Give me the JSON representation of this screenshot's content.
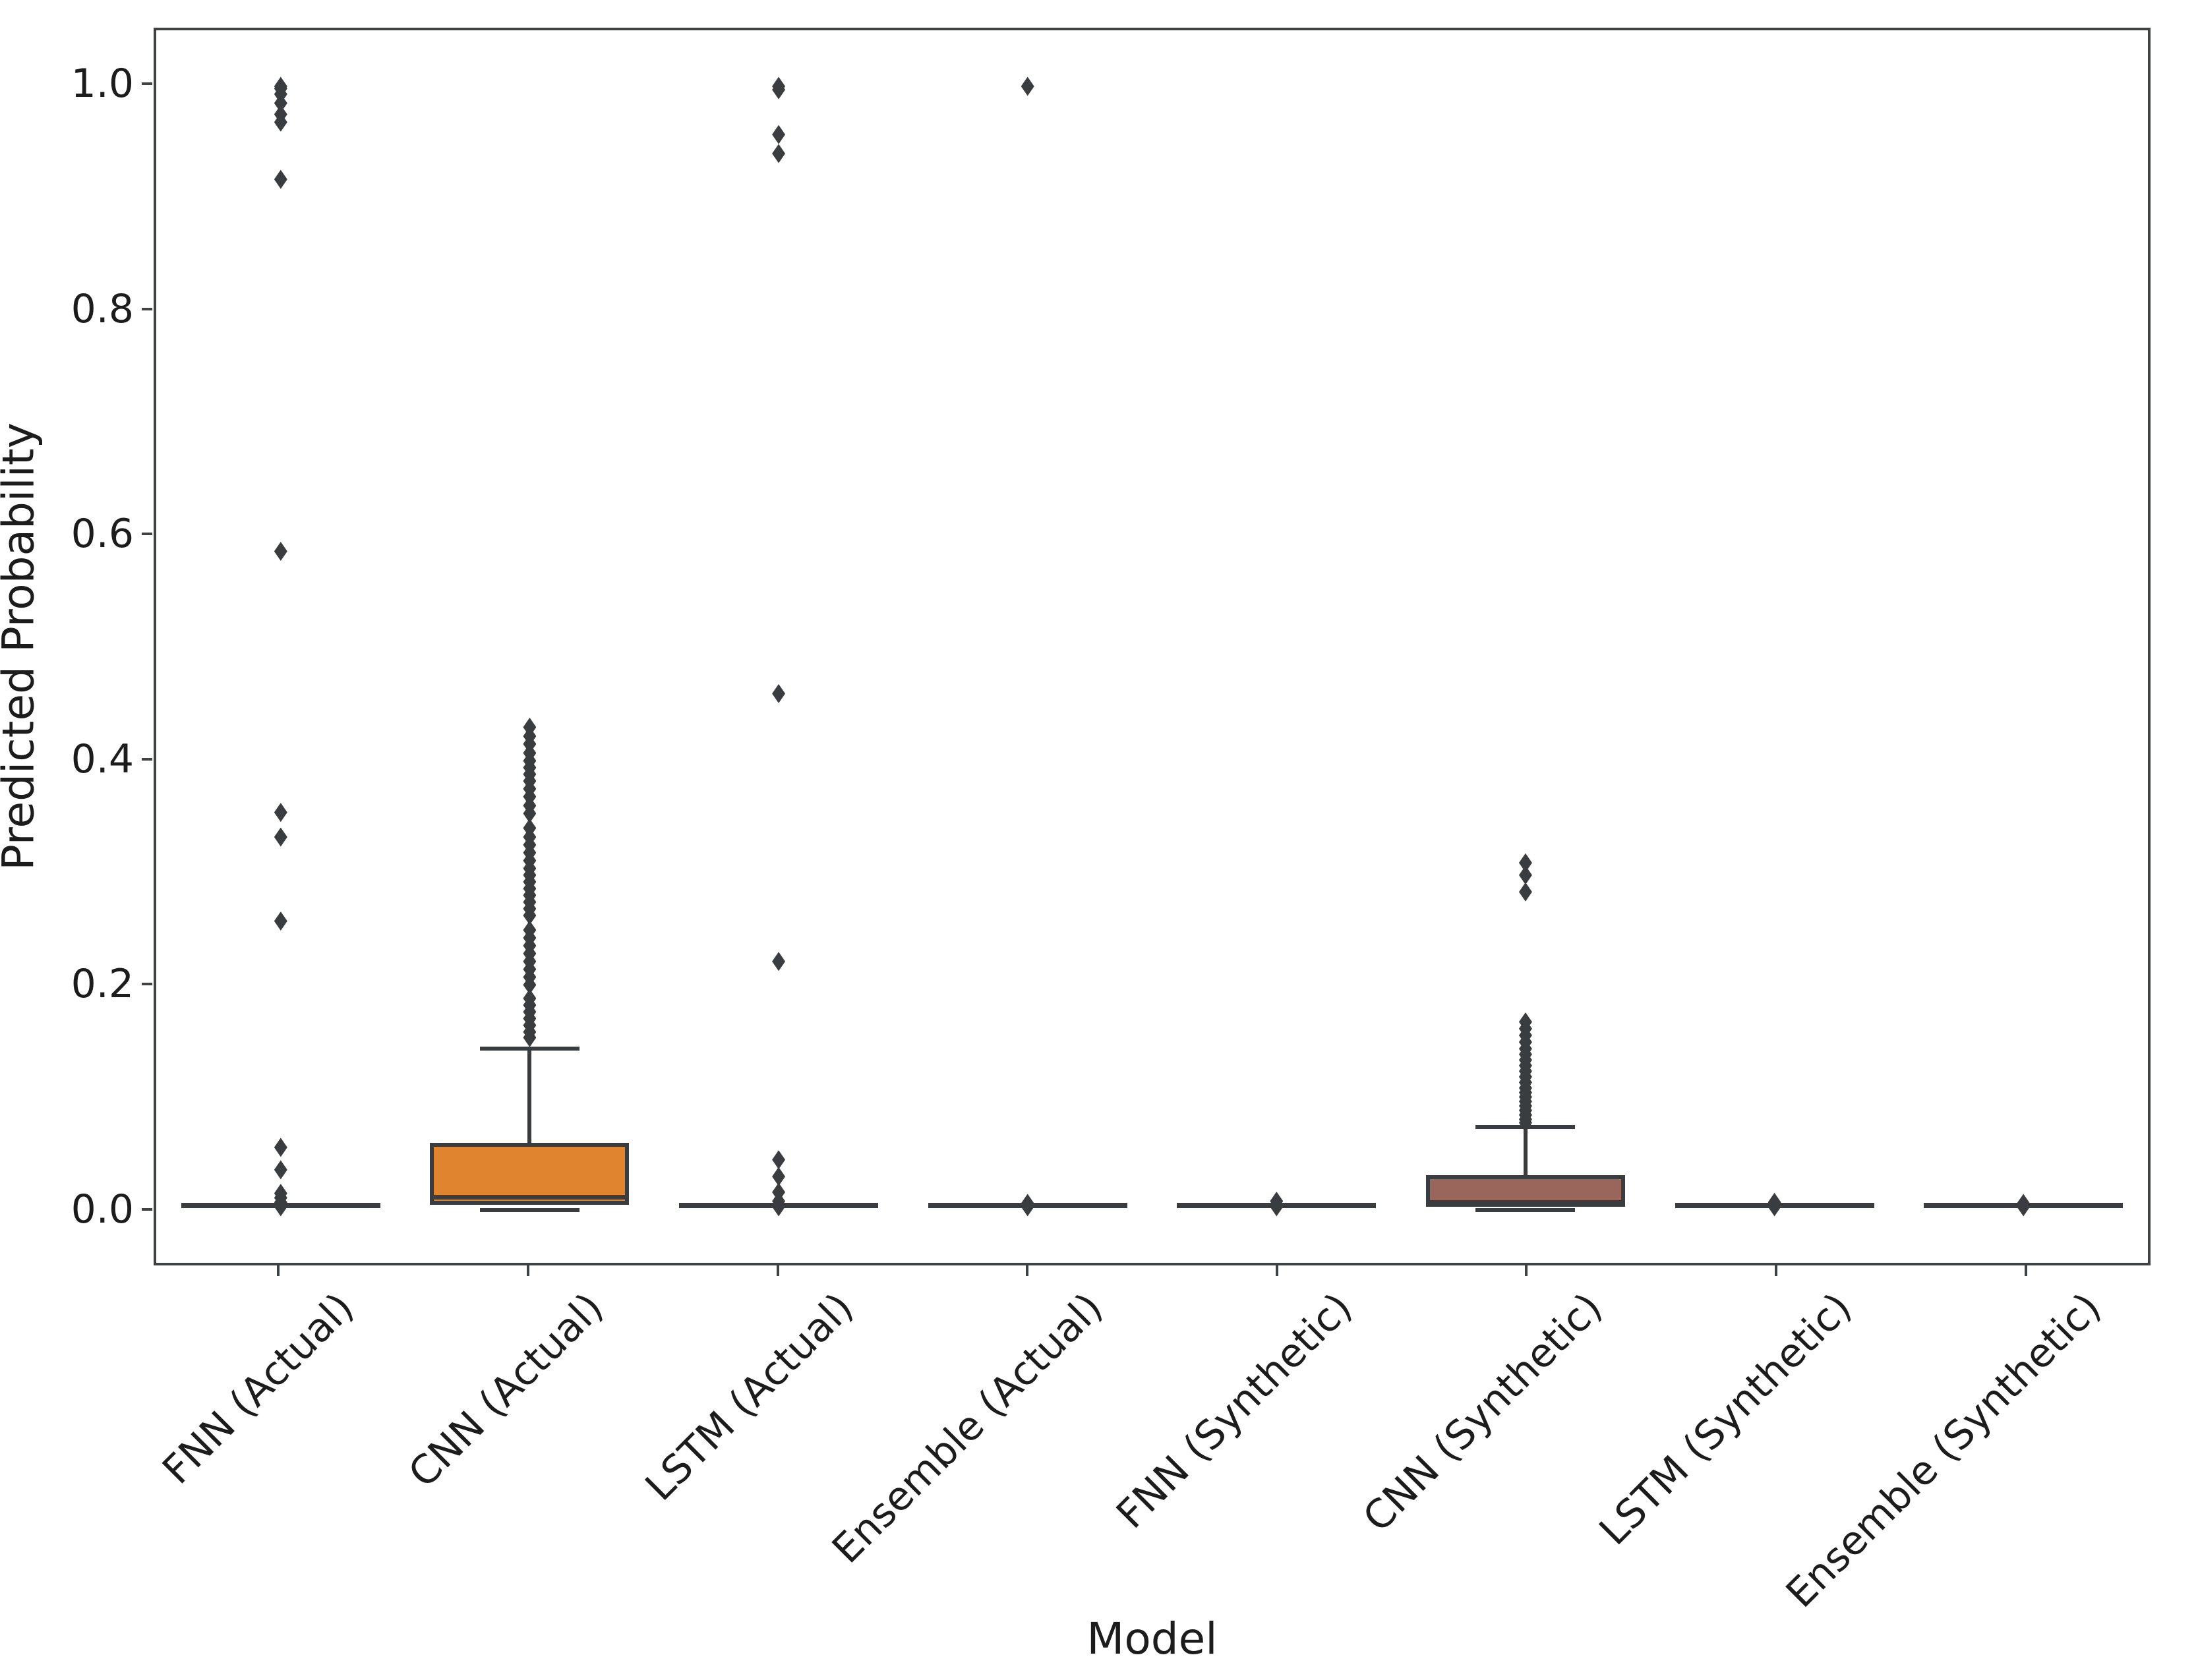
{
  "figure": {
    "background": "#ffffff"
  },
  "chart_data": {
    "type": "box",
    "title": "",
    "xlabel": "Model",
    "ylabel": "Predicted Probability",
    "ylim": [
      -0.05,
      1.05
    ],
    "yticks": [
      0.0,
      0.2,
      0.4,
      0.6,
      0.8,
      1.0
    ],
    "ytick_labels": [
      "0.0",
      "0.2",
      "0.4",
      "0.6",
      "0.8",
      "1.0"
    ],
    "grid": false,
    "legend": "none",
    "marker": "thin-diamond",
    "box_width_frac": 0.8,
    "cap_width_frac": 0.4,
    "colors": {
      "line": "#3a3d40",
      "spine": "#3f4245",
      "text": "#1c1c1c"
    },
    "categories": [
      "FNN (Actual)",
      "CNN (Actual)",
      "LSTM (Actual)",
      "Ensemble (Actual)",
      "FNN (Synthetic)",
      "CNN (Synthetic)",
      "LSTM (Synthetic)",
      "Ensemble (Synthetic)"
    ],
    "boxes": [
      {
        "label": "FNN (Actual)",
        "fill": "#5d83b5",
        "q1": 0.0,
        "median": 0.001,
        "q3": 0.002,
        "whisker_low": 0.0,
        "whisker_high": 0.003,
        "outliers": [
          1.0,
          0.998,
          0.993,
          0.985,
          0.975,
          0.968,
          0.917,
          0.585,
          0.352,
          0.33,
          0.255,
          0.053,
          0.033,
          0.012,
          0.008,
          0.004,
          0.002,
          0.0
        ]
      },
      {
        "label": "CNN (Actual)",
        "fill": "#e0842f",
        "q1": 0.002,
        "median": 0.009,
        "q3": 0.057,
        "whisker_low": 0.0,
        "whisker_high": 0.141,
        "outliers": [
          0.428,
          0.42,
          0.413,
          0.405,
          0.398,
          0.392,
          0.386,
          0.38,
          0.373,
          0.366,
          0.358,
          0.351,
          0.338,
          0.33,
          0.323,
          0.316,
          0.309,
          0.302,
          0.296,
          0.29,
          0.284,
          0.278,
          0.272,
          0.266,
          0.26,
          0.247,
          0.24,
          0.233,
          0.226,
          0.219,
          0.212,
          0.205,
          0.198,
          0.186,
          0.18,
          0.174,
          0.168,
          0.162,
          0.156,
          0.151
        ]
      },
      {
        "label": "LSTM (Actual)",
        "fill": "#67a35e",
        "q1": 0.0,
        "median": 0.001,
        "q3": 0.002,
        "whisker_low": 0.0,
        "whisker_high": 0.003,
        "outliers": [
          1.0,
          0.997,
          0.957,
          0.94,
          0.458,
          0.219,
          0.042,
          0.027,
          0.013,
          0.005,
          0.0
        ]
      },
      {
        "label": "Ensemble (Actual)",
        "fill": "#c5625d",
        "q1": 0.0,
        "median": 0.001,
        "q3": 0.002,
        "whisker_low": 0.0,
        "whisker_high": 0.003,
        "outliers": [
          1.0,
          0.003,
          0.0
        ]
      },
      {
        "label": "FNN (Synthetic)",
        "fill": "#9b8bc4",
        "q1": 0.0,
        "median": 0.001,
        "q3": 0.002,
        "whisker_low": 0.0,
        "whisker_high": 0.003,
        "outliers": [
          0.005,
          0.002,
          0.0
        ]
      },
      {
        "label": "CNN (Synthetic)",
        "fill": "#9a665c",
        "q1": 0.0,
        "median": 0.004,
        "q3": 0.028,
        "whisker_low": 0.0,
        "whisker_high": 0.071,
        "outliers": [
          0.307,
          0.296,
          0.281,
          0.165,
          0.159,
          0.153,
          0.147,
          0.141,
          0.136,
          0.131,
          0.126,
          0.121,
          0.116,
          0.111,
          0.106,
          0.102,
          0.098,
          0.094,
          0.09,
          0.086,
          0.082,
          0.078,
          0.075
        ]
      },
      {
        "label": "LSTM (Synthetic)",
        "fill": "#d391c4",
        "q1": 0.0,
        "median": 0.001,
        "q3": 0.002,
        "whisker_low": 0.0,
        "whisker_high": 0.003,
        "outliers": [
          0.004,
          0.001,
          0.0
        ]
      },
      {
        "label": "Ensemble (Synthetic)",
        "fill": "#9c9c9c",
        "q1": 0.0,
        "median": 0.001,
        "q3": 0.002,
        "whisker_low": 0.0,
        "whisker_high": 0.003,
        "outliers": [
          0.003,
          0.0
        ]
      }
    ]
  }
}
